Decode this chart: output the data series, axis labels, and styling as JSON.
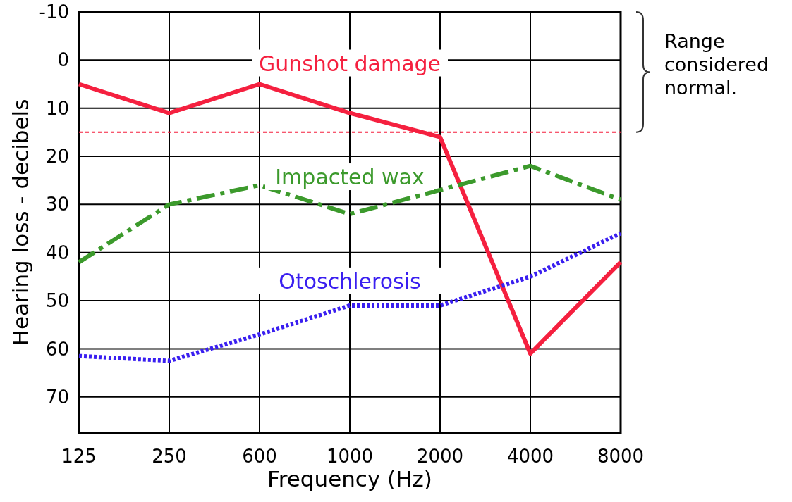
{
  "chart_data": {
    "type": "line",
    "xlabel": "Frequency (Hz)",
    "ylabel": "Hearing loss - decibels",
    "categories": [
      "125",
      "250",
      "600",
      "1000",
      "2000",
      "4000",
      "8000"
    ],
    "ylim": [
      77.5,
      -10
    ],
    "yticks": [
      -10,
      0,
      10,
      20,
      30,
      40,
      50,
      60,
      70
    ],
    "grid": true,
    "series": [
      {
        "name": "Gunshot damage",
        "color": "#f5203f",
        "line_style": "solid",
        "values": [
          5,
          11,
          5,
          11,
          16,
          61,
          42
        ]
      },
      {
        "name": "Impacted wax",
        "color": "#3c9a2c",
        "line_style": "dashed",
        "values": [
          42,
          30,
          26,
          32,
          27,
          22,
          29
        ]
      },
      {
        "name": "Otoschlerosis",
        "color": "#3a1ff0",
        "line_style": "dotted",
        "values": [
          61.5,
          62.5,
          57,
          51,
          51,
          45,
          36
        ]
      }
    ],
    "ref_lines": [
      {
        "axis": "y",
        "value": 15,
        "color": "#f5203f",
        "line_style": "dashed"
      }
    ],
    "annotations": [
      "Range considered normal."
    ]
  }
}
